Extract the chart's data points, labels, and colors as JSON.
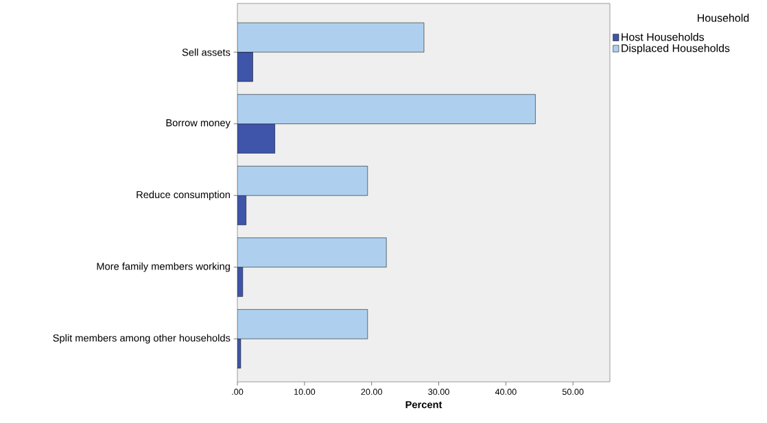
{
  "chart_data": {
    "type": "bar",
    "orientation": "horizontal",
    "xlabel": "Percent",
    "legend_title": "Household",
    "legend": "top right",
    "categories": [
      "Sell assets",
      "Borrow money",
      "Reduce consumption",
      "More family members working",
      "Split members among other households"
    ],
    "series": [
      {
        "name": "Host Households",
        "color": "#3f55a9",
        "values": [
          2.3,
          5.6,
          1.3,
          0.8,
          0.5
        ]
      },
      {
        "name": "Displaced Households",
        "color": "#aed0ee",
        "values": [
          27.8,
          44.4,
          19.4,
          22.2,
          19.4
        ]
      }
    ],
    "xlim": [
      0,
      55.5
    ],
    "xticks": [
      {
        "value": 0,
        "label": ".00"
      },
      {
        "value": 10,
        "label": "10.00"
      },
      {
        "value": 20,
        "label": "20.00"
      },
      {
        "value": 30,
        "label": "30.00"
      },
      {
        "value": 40,
        "label": "40.00"
      },
      {
        "value": 50,
        "label": "50.00"
      }
    ],
    "grid": false
  }
}
